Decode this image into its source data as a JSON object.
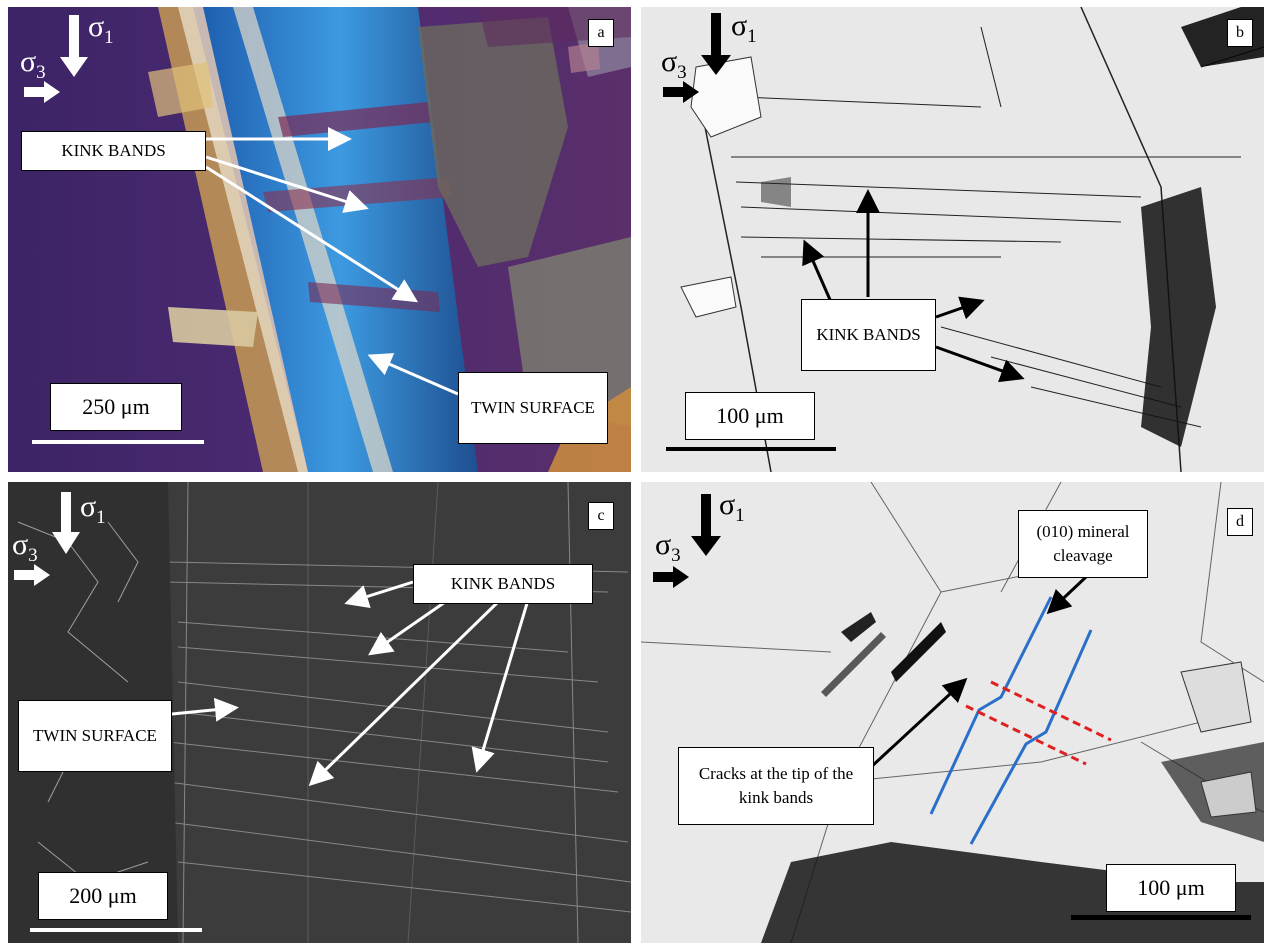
{
  "figure": {
    "panels": [
      {
        "id": "a",
        "letter": "a",
        "sigma1": "σ",
        "sigma1_sub": "1",
        "sigma3": "σ",
        "sigma3_sub": "3",
        "labels": [
          "KINK BANDS",
          "TWIN SURFACE"
        ],
        "scale": "250 μm"
      },
      {
        "id": "b",
        "letter": "b",
        "sigma1": "σ",
        "sigma1_sub": "1",
        "sigma3": "σ",
        "sigma3_sub": "3",
        "labels": [
          "KINK BANDS"
        ],
        "scale": "100 μm"
      },
      {
        "id": "c",
        "letter": "c",
        "sigma1": "σ",
        "sigma1_sub": "1",
        "sigma3": "σ",
        "sigma3_sub": "3",
        "labels": [
          "KINK BANDS",
          "TWIN SURFACE"
        ],
        "scale": "200 μm"
      },
      {
        "id": "d",
        "letter": "d",
        "sigma1": "σ",
        "sigma1_sub": "1",
        "sigma3": "σ",
        "sigma3_sub": "3",
        "labels": [
          "(010) mineral cleavage",
          "Cracks at the tip of the kink bands"
        ],
        "scale": "100 μm"
      }
    ]
  },
  "colors": {
    "panel_a_background": "#4a2a6e",
    "panel_a_blue_band": "#2f7fd0",
    "panel_b_background": "#e6e6e6",
    "panel_c_background": "#3b3b3b",
    "panel_d_background": "#e8e8e8",
    "cleavage_line": "#2a6fc9",
    "kink_boundary": "#e02020"
  }
}
